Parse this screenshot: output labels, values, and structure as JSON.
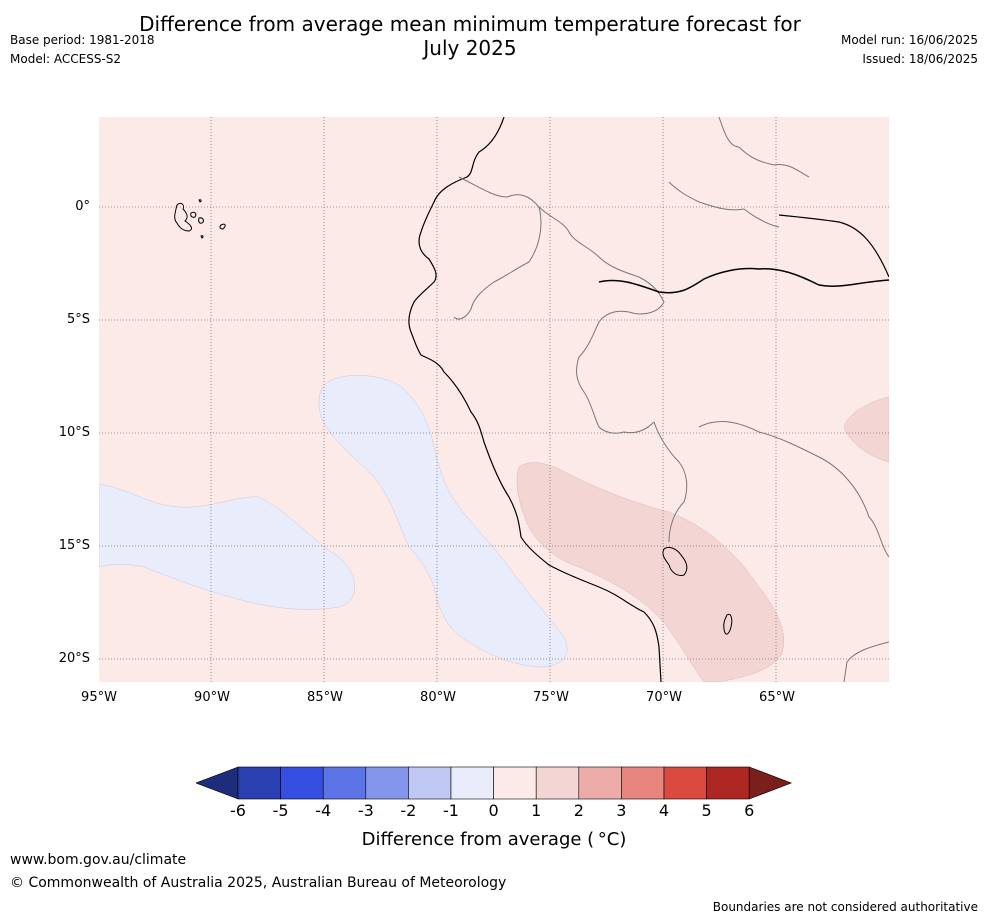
{
  "header": {
    "title_line1": "Difference from average mean minimum temperature forecast for",
    "title_line2": "July 2025",
    "base_period": "Base period: 1981-2018",
    "model": "Model: ACCESS-S2",
    "model_run": "Model run: 16/06/2025",
    "issued": "Issued: 18/06/2025"
  },
  "map": {
    "lat_labels": [
      "0°",
      "5°S",
      "10°S",
      "15°S",
      "20°S"
    ],
    "lon_labels": [
      "95°W",
      "90°W",
      "85°W",
      "80°W",
      "75°W",
      "70°W",
      "65°W"
    ],
    "extent": {
      "lon_min": -95,
      "lon_max": -60,
      "lat_min": -21,
      "lat_max": 4
    },
    "background_anomaly_class": "0 to 1",
    "colors": {
      "cat_0_1": "#fceae8",
      "cat_m1_0": "#e9ecfb",
      "cat_1_2": "#f3d5d4",
      "grid": "#666666",
      "coast": "#000000",
      "border": "#777777"
    }
  },
  "colorbar": {
    "ticks": [
      "-6",
      "-5",
      "-4",
      "-3",
      "-2",
      "-1",
      "0",
      "1",
      "2",
      "3",
      "4",
      "5",
      "6"
    ],
    "colors": [
      "#1e2c7c",
      "#2a3fb0",
      "#3550e0",
      "#5c74e6",
      "#8495ec",
      "#c0c8f4",
      "#e9ecfb",
      "#fceae8",
      "#f3d5d4",
      "#eeaca8",
      "#e8857f",
      "#db4a3f",
      "#ad2822",
      "#7a1f1a"
    ],
    "label": "Difference from average ( °C)"
  },
  "footer": {
    "website": "www.bom.gov.au/climate",
    "copyright": "© Commonwealth of Australia 2025, Australian Bureau of Meteorology",
    "disclaimer": "Boundaries are not considered authoritative"
  }
}
